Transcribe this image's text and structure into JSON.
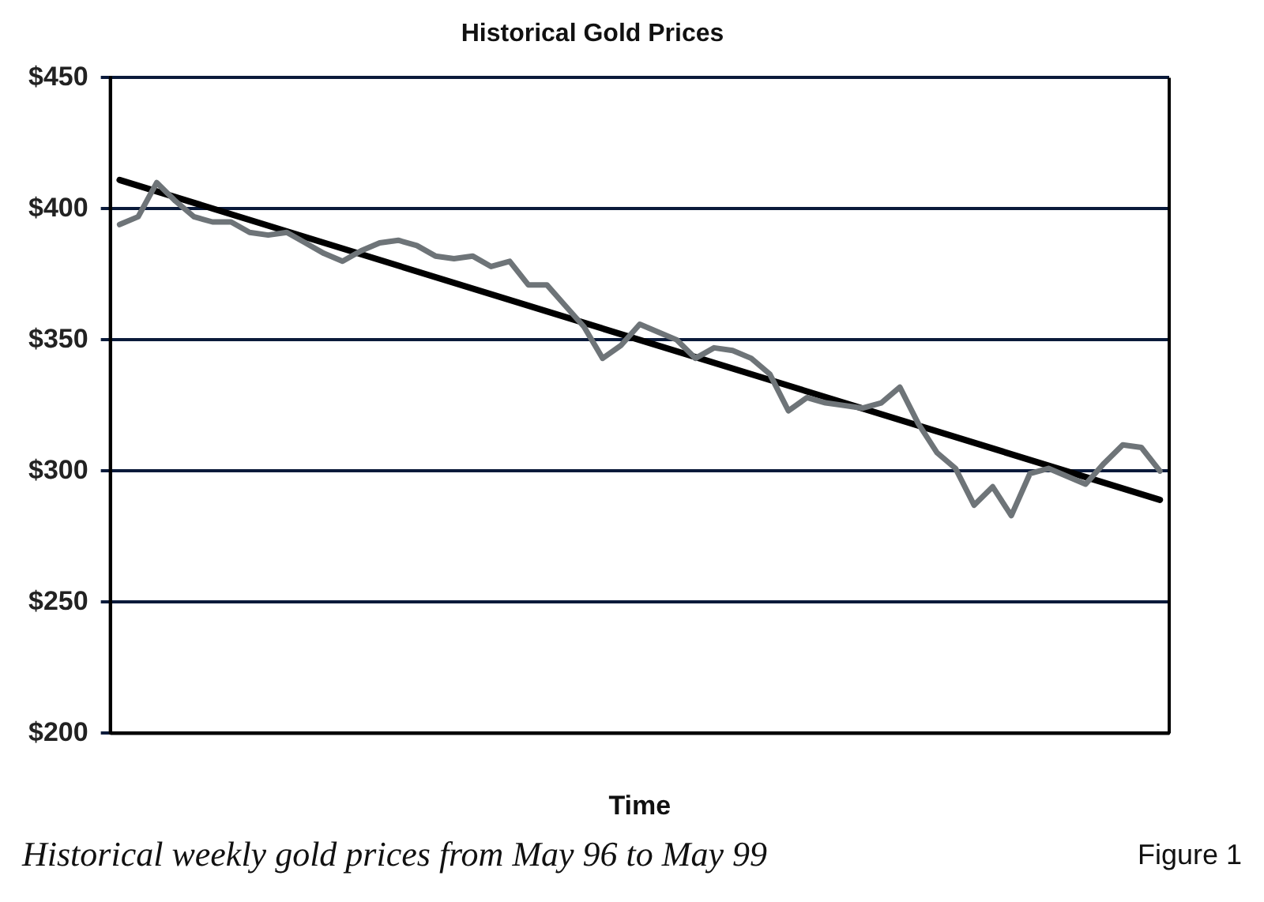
{
  "chart_data": {
    "type": "line",
    "title": "Historical Gold Prices",
    "xlabel": "Time",
    "annotations": [
      "Historical weekly gold prices from May 96 to May 99",
      "Figure 1"
    ],
    "categories": [
      null,
      null,
      null,
      null,
      null,
      null,
      null,
      null,
      null,
      null,
      null,
      null,
      null,
      null,
      null,
      null,
      null,
      null,
      null,
      null,
      null,
      null,
      null,
      null,
      null,
      null,
      null,
      null,
      null,
      null,
      null,
      null,
      null,
      null,
      null,
      null,
      null,
      null,
      null,
      null,
      null,
      null,
      null,
      null,
      null,
      null,
      null,
      null,
      null,
      null,
      null,
      null,
      null,
      null,
      null,
      null,
      null
    ],
    "ylim": [
      200,
      450
    ],
    "yticks": [
      {
        "value": 200,
        "label": "$200"
      },
      {
        "value": 250,
        "label": "$250"
      },
      {
        "value": 300,
        "label": "$300"
      },
      {
        "value": 350,
        "label": "$350"
      },
      {
        "value": 400,
        "label": "$400"
      },
      {
        "value": 450,
        "label": "$450"
      }
    ],
    "grid": "y",
    "legend": false,
    "marker": "none",
    "line_style": "solid",
    "series": [
      {
        "color": "#6e7478",
        "values": [
          394,
          397,
          410,
          403,
          397,
          395,
          395,
          391,
          390,
          391,
          387,
          383,
          380,
          384,
          387,
          388,
          386,
          382,
          381,
          382,
          378,
          380,
          371,
          371,
          363,
          355,
          343,
          348,
          356,
          353,
          350,
          343,
          347,
          346,
          343,
          337,
          323,
          328,
          326,
          325,
          324,
          326,
          332,
          318,
          307,
          301,
          287,
          294,
          283,
          299,
          301,
          298,
          295,
          303,
          310,
          309,
          300
        ]
      },
      {
        "type": "line",
        "color": "#000000",
        "values": [
          411,
          null,
          null,
          null,
          null,
          null,
          null,
          null,
          null,
          null,
          null,
          null,
          null,
          null,
          null,
          null,
          null,
          null,
          null,
          null,
          null,
          null,
          null,
          null,
          null,
          null,
          null,
          null,
          null,
          null,
          null,
          null,
          null,
          null,
          null,
          null,
          null,
          null,
          null,
          null,
          null,
          null,
          null,
          null,
          null,
          null,
          null,
          null,
          null,
          null,
          null,
          null,
          null,
          null,
          null,
          null,
          289
        ]
      }
    ]
  }
}
